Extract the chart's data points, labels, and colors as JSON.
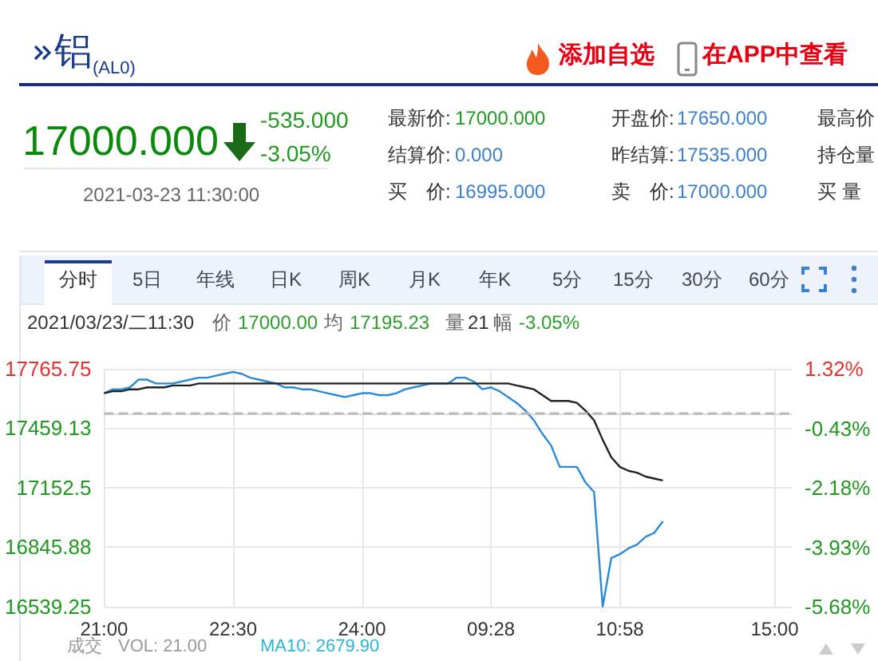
{
  "chart_data": {
    "type": "line",
    "title": "铝$_{(AL0)}$",
    "categories": [
      "21:00",
      null,
      null,
      null,
      null,
      null,
      null,
      null,
      null,
      null,
      null,
      null,
      null,
      null,
      null,
      "22:30",
      null,
      null,
      null,
      null,
      null,
      null,
      null,
      null,
      null,
      null,
      null,
      null,
      null,
      null,
      "24:00",
      null,
      null,
      null,
      null,
      null,
      null,
      null,
      null,
      null,
      null,
      null,
      null,
      null,
      null,
      "09:28",
      null,
      null,
      null,
      null,
      null,
      null,
      null,
      null,
      null,
      null,
      null,
      null,
      null,
      null,
      "10:58",
      null,
      null,
      null,
      null,
      null,
      null,
      null,
      null,
      null,
      null,
      null,
      null,
      null,
      null,
      null,
      null,
      null,
      "15:00",
      null,
      null
    ],
    "series": [
      {
        "color": "#2a8ad8",
        "values": [
          17640,
          17660,
          17660,
          17670,
          17710,
          17710,
          17690,
          17690,
          17690,
          17700,
          17710,
          17720,
          17720,
          17730,
          17740,
          17750,
          17740,
          17720,
          17710,
          17700,
          17690,
          17670,
          17670,
          17660,
          17660,
          17650,
          17640,
          17630,
          17620,
          17630,
          17640,
          17640,
          17630,
          17630,
          17640,
          17660,
          17670,
          17680,
          17690,
          17690,
          17690,
          17720,
          17720,
          17700,
          17660,
          17670,
          17650,
          17620,
          17590,
          17550,
          17500,
          17430,
          17370,
          17260,
          17260,
          17260,
          17180,
          17130,
          16540,
          16790,
          16810,
          16840,
          16860,
          16900,
          16920,
          16980,
          null,
          null,
          null,
          null,
          null,
          null,
          null,
          null,
          null,
          null,
          null,
          null,
          null,
          null,
          null
        ]
      },
      {
        "color": "#222222",
        "values": [
          17640,
          17650,
          17650,
          17660,
          17660,
          17670,
          17670,
          17670,
          17680,
          17680,
          17680,
          17690,
          17690,
          17690,
          17690,
          17690,
          17690,
          17690,
          17690,
          17690,
          17690,
          17690,
          17690,
          17690,
          17690,
          17690,
          17690,
          17690,
          17690,
          17690,
          17690,
          17690,
          17690,
          17690,
          17690,
          17690,
          17690,
          17690,
          17690,
          17690,
          17690,
          17690,
          17690,
          17690,
          17690,
          17690,
          17690,
          17690,
          17680,
          17670,
          17660,
          17630,
          17600,
          17600,
          17600,
          17590,
          17550,
          17500,
          17400,
          17310,
          17260,
          17240,
          17230,
          17210,
          17200,
          17190,
          null,
          null,
          null,
          null,
          null,
          null,
          null,
          null,
          null,
          null,
          null,
          null,
          null,
          null,
          null
        ]
      }
    ],
    "ylim": [
      16539.25,
      17765.75
    ],
    "yticks": [
      16539.25,
      16845.88,
      17152.5,
      17459.13,
      17765.75
    ],
    "y2lim": [
      -5.68,
      1.32
    ],
    "y2ticks": [
      {
        "value": -5.68,
        "label": "-5.68%"
      },
      {
        "value": -3.93,
        "label": "-3.93%"
      },
      {
        "value": -2.18,
        "label": "-2.18%"
      },
      {
        "value": -0.43,
        "label": "-0.43%"
      },
      {
        "value": 1.32,
        "label": "1.32%"
      }
    ],
    "ref_lines": [
      {
        "axis": "y",
        "value": 17535,
        "color": "#bbbbbb",
        "line_style": "dashed"
      }
    ],
    "grid": true,
    "marker": "none",
    "line_style": "solid",
    "annotations": [
      "添加自选",
      "在APP中查看",
      "17000.000",
      "-535.000",
      "-3.05%",
      "2021-03-23 11:30:00",
      "最新价:",
      "17000.000",
      "开盘价:",
      "17650.000",
      "最高价",
      "结算价:",
      "0.000",
      "昨结算:",
      "17535.000",
      "持仓量",
      "买　价:",
      "16995.000",
      "卖　价:",
      "17000.000",
      "买 量",
      "分时",
      "5日",
      "年线",
      "日K",
      "周K",
      "月K",
      "年K",
      "5分",
      "15分",
      "30分",
      "60分",
      "2021/03/23/二11:30",
      "价",
      "17000.00",
      "均",
      "17195.23",
      "量",
      "21",
      "幅",
      "-3.05%",
      "成交",
      "VOL: 21.00",
      "MA10: 2679.90"
    ]
  }
}
